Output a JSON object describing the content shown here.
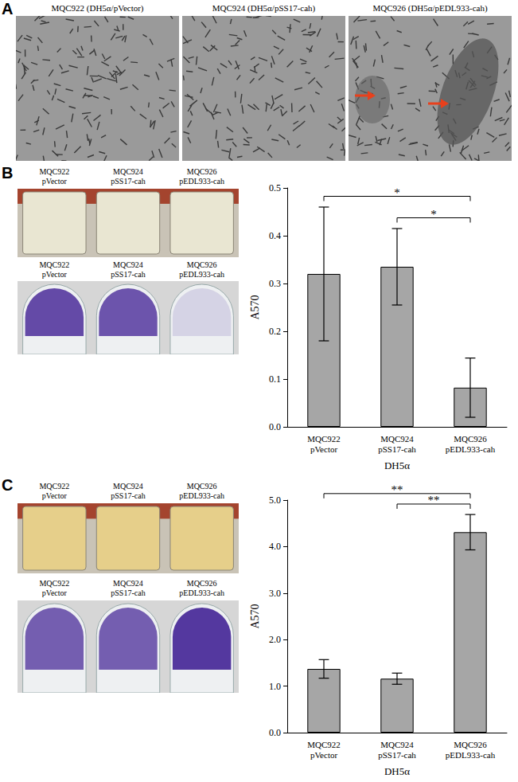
{
  "figure": {
    "panels": [
      {
        "label": "A",
        "images": [
          "MQC922 (DH5α/pVector)",
          "MQC924 (DH5α/pSS17-cah)",
          "MQC926 (DH5α/pEDL933-cah)"
        ]
      },
      {
        "label": "B",
        "photos": [
          {
            "labels": [
              "MQC922\npVector",
              "MQC924\npSS17-cah",
              "MQC926\npEDL933-cah"
            ]
          },
          {
            "labels": [
              "MQC922\npVector",
              "MQC924\npSS17-cah",
              "MQC926\npEDL933-cah"
            ]
          }
        ]
      },
      {
        "label": "C",
        "photos": [
          {
            "labels": [
              "MQC922\npVector",
              "MQC924\npSS17-cah",
              "MQC926\npEDL933-cah"
            ]
          },
          {
            "labels": [
              "MQC922\npVector",
              "MQC924\npSS17-cah",
              "MQC926\npEDL933-cah"
            ]
          }
        ]
      }
    ]
  },
  "chart_data": [
    {
      "type": "bar",
      "categories": [
        "MQC922\npVector",
        "MQC924\npSS17-cah",
        "MQC926\npEDL933-cah"
      ],
      "values": [
        0.32,
        0.335,
        0.082
      ],
      "errors": [
        0.14,
        0.08,
        0.062
      ],
      "color": "#a6a6a6",
      "x_label": "DH5α",
      "y_label": "A570",
      "ylim": [
        0,
        0.5
      ],
      "yticks": [
        {
          "value": 0,
          "label": "0.0"
        },
        0.1,
        0.2,
        0.3,
        0.4,
        0.5
      ],
      "grid": false,
      "annotations": [
        {
          "text": "*",
          "between": [
            "MQC922\npVector",
            "MQC926\npEDL933-cah"
          ]
        },
        {
          "text": "*",
          "between": [
            "MQC924\npSS17-cah",
            "MQC926\npEDL933-cah"
          ]
        }
      ]
    },
    {
      "type": "bar",
      "categories": [
        "MQC922\npVector",
        "MQC924\npSS17-cah",
        "MQC926\npEDL933-cah"
      ],
      "values": [
        1.37,
        1.16,
        4.31
      ],
      "errors": [
        0.2,
        0.12,
        0.38
      ],
      "color": "#a6a6a6",
      "x_label": "DH5α",
      "y_label": "A570",
      "ylim": [
        0,
        5
      ],
      "yticks": [
        {
          "value": 0,
          "label": "0.0"
        },
        {
          "value": 1,
          "label": "1.0"
        },
        {
          "value": 2,
          "label": "2.0"
        },
        {
          "value": 3,
          "label": "3.0"
        },
        {
          "value": 4,
          "label": "4.0"
        },
        {
          "value": 5,
          "label": "5.0"
        }
      ],
      "grid": false,
      "annotations": [
        {
          "text": "**",
          "between": [
            "MQC922\npVector",
            "MQC926\npEDL933-cah"
          ]
        },
        {
          "text": "**",
          "between": [
            "MQC924\npSS17-cah",
            "MQC926\npEDL933-cah"
          ]
        }
      ]
    }
  ]
}
